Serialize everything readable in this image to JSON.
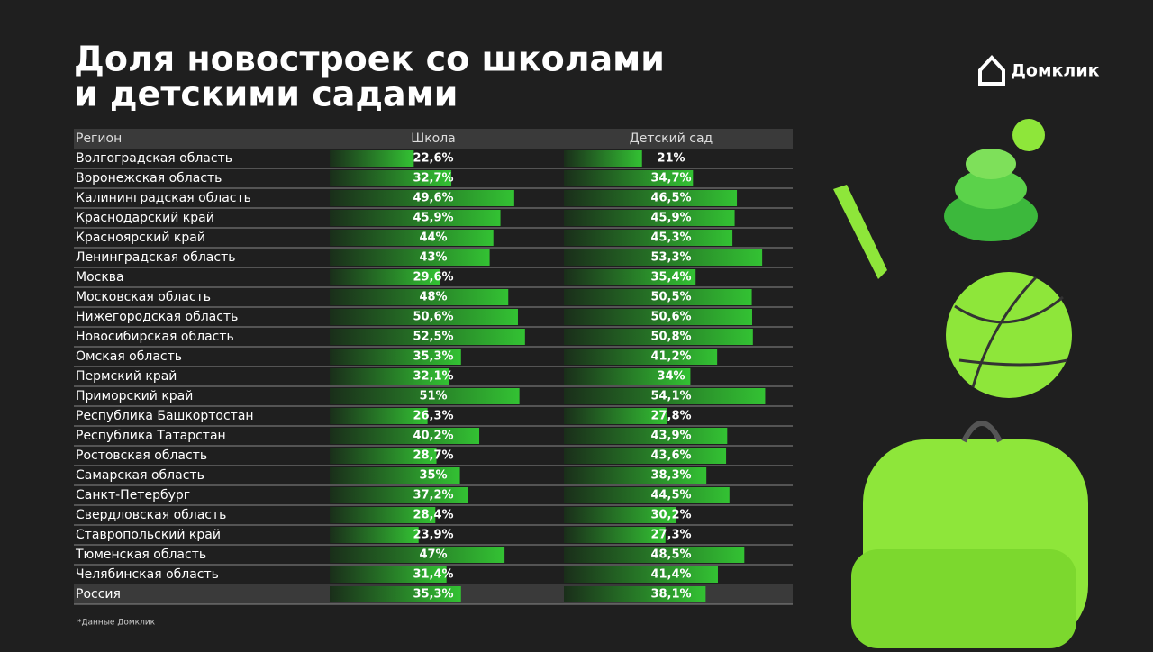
{
  "chart_data": {
    "type": "bar",
    "title": "Доля новостроек со школами и детскими садами",
    "title_lines": [
      "Доля новостроек со школами",
      "и детскими садами"
    ],
    "brand": "Домклик",
    "footnote": "*Данные Домклик",
    "category_header": "Регион",
    "categories": [
      "Волгоградская область",
      "Воронежская область",
      "Калининградская область",
      "Краснодарский край",
      "Красноярский край",
      "Ленинградская область",
      "Москва",
      "Московская область",
      "Нижегородская область",
      "Новосибирская область",
      "Омская область",
      "Пермский край",
      "Приморский край",
      "Республика Башкортостан",
      "Республика Татарстан",
      "Ростовская область",
      "Самарская область",
      "Санкт-Петербург",
      "Свердловская область",
      "Ставропольский край",
      "Тюменская область",
      "Челябинская область",
      "Россия"
    ],
    "xlim": [
      0,
      100
    ],
    "series": [
      {
        "name": "Школа",
        "color": "#33c233",
        "values": [
          22.6,
          32.7,
          49.6,
          45.9,
          44,
          43,
          29.6,
          48,
          50.6,
          52.5,
          35.3,
          32.1,
          51,
          26.3,
          40.2,
          28.7,
          35,
          37.2,
          28.4,
          23.9,
          47,
          31.4,
          35.3
        ],
        "value_labels": [
          "22,6%",
          "32,7%",
          "49,6%",
          "45,9%",
          "44%",
          "43%",
          "29,6%",
          "48%",
          "50,6%",
          "52,5%",
          "35,3%",
          "32,1%",
          "51%",
          "26,3%",
          "40,2%",
          "28,7%",
          "35%",
          "37,2%",
          "28,4%",
          "23,9%",
          "47%",
          "31,4%",
          "35,3%"
        ]
      },
      {
        "name": "Детский сад",
        "color": "#33c233",
        "values": [
          21,
          34.7,
          46.5,
          45.9,
          45.3,
          53.3,
          35.4,
          50.5,
          50.6,
          50.8,
          41.2,
          34,
          54.1,
          27.8,
          43.9,
          43.6,
          38.3,
          44.5,
          30.2,
          27.3,
          48.5,
          41.4,
          38.1
        ],
        "value_labels": [
          "21%",
          "34,7%",
          "46,5%",
          "45,9%",
          "45,3%",
          "53,3%",
          "35,4%",
          "50,5%",
          "50,6%",
          "50,8%",
          "41,2%",
          "34%",
          "54,1%",
          "27,8%",
          "43,9%",
          "43,6%",
          "38,3%",
          "44,5%",
          "30,2%",
          "27,3%",
          "48,5%",
          "41,4%",
          "38,1%"
        ]
      }
    ]
  }
}
